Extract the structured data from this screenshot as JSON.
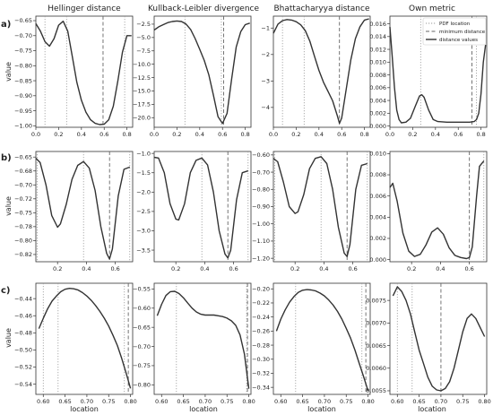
{
  "figure": {
    "column_titles": [
      "Hellinger distance",
      "Kullback-Leibler divergence",
      "Bhattacharyya distance",
      "Own metric"
    ],
    "row_labels": [
      "a)",
      "b)",
      "c)"
    ],
    "xlabel": "location",
    "ylabel": "value",
    "legend": {
      "placement": "top-right of Own metric panel (row a)",
      "entries": [
        "PDF location",
        "minimum distance",
        "distance values"
      ]
    }
  },
  "chart_data": [
    {
      "type": "line",
      "row": "a",
      "column": "Hellinger distance",
      "xlim": [
        0.0,
        0.85
      ],
      "ylim": [
        -1.005,
        -0.635
      ],
      "xticks": [
        0.0,
        0.2,
        0.4,
        0.6,
        0.8
      ],
      "yticks": [
        -0.65,
        -0.7,
        -0.75,
        -0.8,
        -0.85,
        -0.9,
        -0.95,
        -1.0
      ],
      "pdf_locations": [
        0.08,
        0.27,
        0.78
      ],
      "minimum_distance": 0.59,
      "x": [
        0.0,
        0.04,
        0.08,
        0.12,
        0.16,
        0.2,
        0.24,
        0.28,
        0.32,
        0.36,
        0.4,
        0.44,
        0.48,
        0.52,
        0.56,
        0.6,
        0.64,
        0.68,
        0.72,
        0.76,
        0.8,
        0.84
      ],
      "y": [
        -0.66,
        -0.685,
        -0.72,
        -0.735,
        -0.71,
        -0.665,
        -0.652,
        -0.685,
        -0.77,
        -0.855,
        -0.915,
        -0.955,
        -0.98,
        -0.992,
        -0.996,
        -0.995,
        -0.98,
        -0.935,
        -0.85,
        -0.755,
        -0.7,
        -0.7
      ]
    },
    {
      "type": "line",
      "row": "a",
      "column": "Kullback-Leibler divergence",
      "xlim": [
        0.0,
        0.85
      ],
      "ylim": [
        -21.8,
        -1.0
      ],
      "xticks": [
        0.0,
        0.2,
        0.4,
        0.6,
        0.8
      ],
      "yticks": [
        -2.5,
        -5.0,
        -7.5,
        -10.0,
        -12.5,
        -15.0,
        -17.5,
        -20.0
      ],
      "pdf_locations": [
        0.27,
        0.59
      ],
      "minimum_distance": 0.61,
      "x": [
        0.0,
        0.04,
        0.08,
        0.12,
        0.16,
        0.2,
        0.24,
        0.28,
        0.32,
        0.36,
        0.4,
        0.44,
        0.48,
        0.52,
        0.56,
        0.6,
        0.64,
        0.68,
        0.72,
        0.76,
        0.8,
        0.84
      ],
      "y": [
        -3.6,
        -3.0,
        -2.6,
        -2.2,
        -2.0,
        -1.9,
        -2.0,
        -2.5,
        -3.5,
        -5.2,
        -7.2,
        -9.3,
        -12.0,
        -15.8,
        -19.8,
        -21.1,
        -19.2,
        -12.8,
        -6.8,
        -3.9,
        -2.6,
        -2.3
      ]
    },
    {
      "type": "line",
      "row": "a",
      "column": "Bhattacharyya distance",
      "xlim": [
        0.0,
        0.85
      ],
      "ylim": [
        -4.75,
        -0.55
      ],
      "xticks": [
        0.0,
        0.2,
        0.4,
        0.6,
        0.8
      ],
      "yticks": [
        -1,
        -2,
        -3,
        -4
      ],
      "pdf_locations": [
        0.08,
        0.27
      ],
      "minimum_distance": 0.58,
      "x": [
        0.0,
        0.04,
        0.08,
        0.12,
        0.16,
        0.2,
        0.24,
        0.28,
        0.32,
        0.36,
        0.4,
        0.44,
        0.48,
        0.52,
        0.56,
        0.58,
        0.6,
        0.64,
        0.68,
        0.72,
        0.76,
        0.8,
        0.84
      ],
      "y": [
        -1.2,
        -0.85,
        -0.72,
        -0.68,
        -0.7,
        -0.76,
        -0.88,
        -1.1,
        -1.5,
        -2.05,
        -2.6,
        -3.05,
        -3.4,
        -3.75,
        -4.3,
        -4.6,
        -4.4,
        -3.3,
        -2.2,
        -1.4,
        -0.95,
        -0.7,
        -0.65
      ]
    },
    {
      "type": "line",
      "row": "a",
      "column": "Own metric",
      "xlim": [
        0.0,
        0.85
      ],
      "ylim": [
        -0.0002,
        0.0172
      ],
      "xticks": [
        0.0,
        0.2,
        0.4,
        0.6,
        0.8
      ],
      "yticks": [
        0.0,
        0.002,
        0.004,
        0.006,
        0.008,
        0.01,
        0.012,
        0.014,
        0.016
      ],
      "pdf_locations": [
        0.27,
        0.76
      ],
      "minimum_distance": 0.72,
      "x": [
        0.0,
        0.02,
        0.04,
        0.06,
        0.08,
        0.1,
        0.14,
        0.18,
        0.22,
        0.26,
        0.28,
        0.3,
        0.34,
        0.38,
        0.42,
        0.5,
        0.6,
        0.7,
        0.74,
        0.76,
        0.78,
        0.8,
        0.82,
        0.84
      ],
      "y": [
        0.0155,
        0.011,
        0.006,
        0.0025,
        0.001,
        0.0005,
        0.0006,
        0.0012,
        0.003,
        0.0047,
        0.0049,
        0.0045,
        0.0025,
        0.001,
        0.0007,
        0.0006,
        0.0006,
        0.0006,
        0.0007,
        0.001,
        0.002,
        0.005,
        0.01,
        0.0127
      ]
    },
    {
      "type": "line",
      "row": "b",
      "column": "Hellinger distance",
      "xlim": [
        0.05,
        0.72
      ],
      "ylim": [
        -0.838,
        -0.64
      ],
      "xticks": [
        0.2,
        0.4,
        0.6
      ],
      "yticks": [
        -0.65,
        -0.675,
        -0.7,
        -0.725,
        -0.75,
        -0.775,
        -0.8,
        -0.825
      ],
      "pdf_locations": [
        0.06,
        0.38,
        0.7
      ],
      "minimum_distance": 0.56,
      "x": [
        0.05,
        0.08,
        0.12,
        0.16,
        0.2,
        0.22,
        0.26,
        0.3,
        0.34,
        0.38,
        0.42,
        0.46,
        0.5,
        0.54,
        0.56,
        0.58,
        0.62,
        0.66,
        0.7
      ],
      "y": [
        -0.652,
        -0.66,
        -0.7,
        -0.755,
        -0.776,
        -0.77,
        -0.735,
        -0.69,
        -0.665,
        -0.658,
        -0.67,
        -0.71,
        -0.775,
        -0.823,
        -0.833,
        -0.815,
        -0.72,
        -0.672,
        -0.668
      ]
    },
    {
      "type": "line",
      "row": "b",
      "column": "Kullback-Leibler divergence",
      "xlim": [
        0.05,
        0.72
      ],
      "ylim": [
        -3.8,
        -0.95
      ],
      "xticks": [
        0.2,
        0.4,
        0.6
      ],
      "yticks": [
        -1.0,
        -1.5,
        -2.0,
        -2.5,
        -3.0,
        -3.5
      ],
      "pdf_locations": [
        0.38,
        0.7
      ],
      "minimum_distance": 0.56,
      "x": [
        0.05,
        0.08,
        0.12,
        0.16,
        0.2,
        0.22,
        0.26,
        0.3,
        0.34,
        0.38,
        0.42,
        0.46,
        0.5,
        0.54,
        0.56,
        0.58,
        0.62,
        0.66,
        0.7
      ],
      "y": [
        -1.1,
        -1.12,
        -1.5,
        -2.3,
        -2.7,
        -2.72,
        -2.3,
        -1.5,
        -1.18,
        -1.12,
        -1.3,
        -2.0,
        -3.0,
        -3.6,
        -3.7,
        -3.5,
        -2.2,
        -1.5,
        -1.45
      ]
    },
    {
      "type": "line",
      "row": "b",
      "column": "Bhattacharyya distance",
      "xlim": [
        0.05,
        0.72
      ],
      "ylim": [
        -1.22,
        -0.58
      ],
      "xticks": [
        0.2,
        0.4,
        0.6
      ],
      "yticks": [
        -0.6,
        -0.7,
        -0.8,
        -0.9,
        -1.0,
        -1.1,
        -1.2
      ],
      "pdf_locations": [
        0.06,
        0.38,
        0.7
      ],
      "minimum_distance": 0.56,
      "x": [
        0.05,
        0.08,
        0.12,
        0.16,
        0.2,
        0.22,
        0.26,
        0.3,
        0.34,
        0.38,
        0.42,
        0.46,
        0.5,
        0.54,
        0.56,
        0.58,
        0.62,
        0.66,
        0.7
      ],
      "y": [
        -0.62,
        -0.64,
        -0.76,
        -0.9,
        -0.94,
        -0.93,
        -0.83,
        -0.68,
        -0.62,
        -0.61,
        -0.65,
        -0.8,
        -1.02,
        -1.17,
        -1.19,
        -1.12,
        -0.8,
        -0.66,
        -0.65
      ]
    },
    {
      "type": "line",
      "row": "b",
      "column": "Own metric",
      "xlim": [
        0.05,
        0.72
      ],
      "ylim": [
        -0.0002,
        0.0102
      ],
      "xticks": [
        0.2,
        0.4,
        0.6
      ],
      "yticks": [
        0.0,
        0.002,
        0.004,
        0.006,
        0.008,
        0.01
      ],
      "pdf_locations": [
        0.7
      ],
      "minimum_distance": 0.6,
      "x": [
        0.05,
        0.07,
        0.1,
        0.14,
        0.18,
        0.22,
        0.26,
        0.3,
        0.34,
        0.38,
        0.42,
        0.46,
        0.5,
        0.54,
        0.58,
        0.6,
        0.62,
        0.65,
        0.67,
        0.7
      ],
      "y": [
        0.0068,
        0.0072,
        0.0055,
        0.0025,
        0.0008,
        0.0003,
        0.0005,
        0.0014,
        0.0026,
        0.003,
        0.0024,
        0.0011,
        0.0004,
        0.0002,
        0.0001,
        0.0002,
        0.0012,
        0.006,
        0.0088,
        0.0093
      ]
    },
    {
      "type": "line",
      "row": "c",
      "column": "Hellinger distance",
      "xlim": [
        0.583,
        0.805
      ],
      "ylim": [
        -0.552,
        -0.422
      ],
      "xticks": [
        0.6,
        0.65,
        0.7,
        0.75,
        0.8
      ],
      "yticks": [
        -0.44,
        -0.46,
        -0.48,
        -0.5,
        -0.52,
        -0.54
      ],
      "pdf_locations": [
        0.6,
        0.634,
        0.786
      ],
      "minimum_distance": 0.795,
      "x": [
        0.59,
        0.6,
        0.61,
        0.62,
        0.63,
        0.64,
        0.65,
        0.66,
        0.67,
        0.68,
        0.69,
        0.7,
        0.71,
        0.72,
        0.73,
        0.74,
        0.75,
        0.76,
        0.77,
        0.78,
        0.79,
        0.8
      ],
      "y": [
        -0.475,
        -0.463,
        -0.452,
        -0.443,
        -0.437,
        -0.432,
        -0.429,
        -0.428,
        -0.4285,
        -0.43,
        -0.433,
        -0.437,
        -0.442,
        -0.448,
        -0.455,
        -0.463,
        -0.472,
        -0.483,
        -0.495,
        -0.51,
        -0.527,
        -0.545
      ]
    },
    {
      "type": "line",
      "row": "c",
      "column": "Kullback-Leibler divergence",
      "xlim": [
        0.583,
        0.805
      ],
      "ylim": [
        -0.825,
        -0.535
      ],
      "xticks": [
        0.6,
        0.65,
        0.7,
        0.75,
        0.8
      ],
      "yticks": [
        -0.55,
        -0.6,
        -0.65,
        -0.7,
        -0.75,
        -0.8
      ],
      "pdf_locations": [
        0.634,
        0.795
      ],
      "minimum_distance": 0.797,
      "x": [
        0.59,
        0.6,
        0.61,
        0.62,
        0.63,
        0.64,
        0.65,
        0.66,
        0.67,
        0.68,
        0.69,
        0.7,
        0.71,
        0.72,
        0.73,
        0.74,
        0.75,
        0.76,
        0.77,
        0.78,
        0.79,
        0.8
      ],
      "y": [
        -0.62,
        -0.59,
        -0.567,
        -0.557,
        -0.556,
        -0.562,
        -0.573,
        -0.587,
        -0.6,
        -0.61,
        -0.616,
        -0.618,
        -0.618,
        -0.618,
        -0.62,
        -0.622,
        -0.626,
        -0.633,
        -0.645,
        -0.67,
        -0.72,
        -0.81
      ]
    },
    {
      "type": "line",
      "row": "c",
      "column": "Bhattacharyya distance",
      "xlim": [
        0.583,
        0.805
      ],
      "ylim": [
        -0.35,
        -0.192
      ],
      "xticks": [
        0.6,
        0.65,
        0.7,
        0.75,
        0.8
      ],
      "yticks": [
        -0.2,
        -0.22,
        -0.24,
        -0.26,
        -0.28,
        -0.3,
        -0.32,
        -0.34
      ],
      "pdf_locations": [
        0.634,
        0.786
      ],
      "minimum_distance": 0.795,
      "x": [
        0.59,
        0.6,
        0.61,
        0.62,
        0.63,
        0.64,
        0.65,
        0.66,
        0.67,
        0.68,
        0.69,
        0.7,
        0.71,
        0.72,
        0.73,
        0.74,
        0.75,
        0.76,
        0.77,
        0.78,
        0.79,
        0.8
      ],
      "y": [
        -0.26,
        -0.243,
        -0.23,
        -0.219,
        -0.211,
        -0.205,
        -0.202,
        -0.201,
        -0.2015,
        -0.203,
        -0.206,
        -0.21,
        -0.216,
        -0.223,
        -0.232,
        -0.243,
        -0.256,
        -0.27,
        -0.287,
        -0.306,
        -0.325,
        -0.345
      ]
    },
    {
      "type": "line",
      "row": "c",
      "column": "Own metric",
      "xlim": [
        0.583,
        0.805
      ],
      "ylim": [
        0.00542,
        0.00788
      ],
      "xticks": [
        0.6,
        0.65,
        0.7,
        0.75,
        0.8
      ],
      "yticks": [
        0.0055,
        0.006,
        0.0065,
        0.007,
        0.0075
      ],
      "pdf_locations": [
        0.6,
        0.634
      ],
      "minimum_distance": 0.7,
      "x": [
        0.59,
        0.6,
        0.61,
        0.62,
        0.63,
        0.64,
        0.65,
        0.66,
        0.67,
        0.68,
        0.69,
        0.7,
        0.71,
        0.72,
        0.73,
        0.74,
        0.75,
        0.76,
        0.77,
        0.78,
        0.79,
        0.8
      ],
      "y": [
        0.0076,
        0.0078,
        0.0077,
        0.0075,
        0.0072,
        0.0068,
        0.0064,
        0.0061,
        0.0058,
        0.0056,
        0.00552,
        0.0055,
        0.00555,
        0.0057,
        0.006,
        0.0064,
        0.0068,
        0.0071,
        0.0072,
        0.0071,
        0.0069,
        0.0067
      ]
    }
  ]
}
